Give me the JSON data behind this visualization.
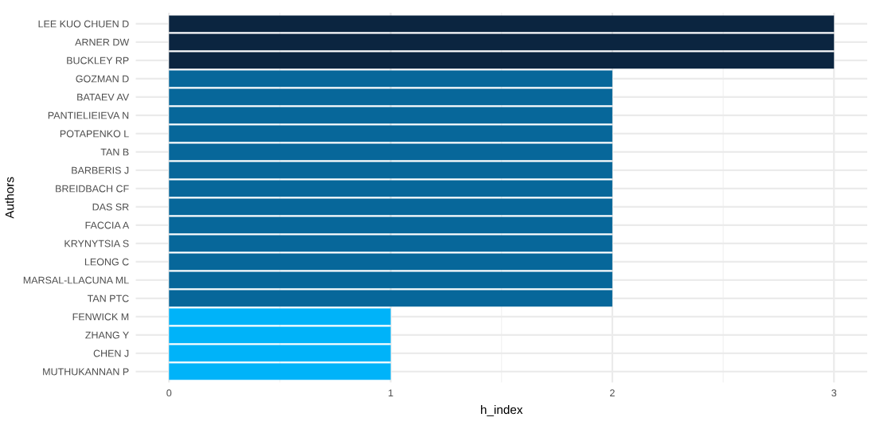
{
  "chart_data": {
    "type": "bar",
    "orientation": "horizontal",
    "xlabel": "h_index",
    "ylabel": "Authors",
    "categories": [
      "LEE KUO CHUEN D",
      "ARNER DW",
      "BUCKLEY RP",
      "GOZMAN D",
      "BATAEV AV",
      "PANTIELIEIEVA N",
      "POTAPENKO L",
      "TAN B",
      "BARBERIS J",
      "BREIDBACH CF",
      "DAS SR",
      "FACCIA A",
      "KRYNYTSIA S",
      "LEONG C",
      "MARSAL-LLACUNA ML",
      "TAN PTC",
      "FENWICK M",
      "ZHANG Y",
      "CHEN J",
      "MUTHUKANNAN P"
    ],
    "values": [
      3,
      3,
      3,
      2,
      2,
      2,
      2,
      2,
      2,
      2,
      2,
      2,
      2,
      2,
      2,
      2,
      1,
      1,
      1,
      1
    ],
    "colors": [
      "#0b2540",
      "#0b2540",
      "#0b2540",
      "#07679a",
      "#07679a",
      "#07679a",
      "#07679a",
      "#07679a",
      "#07679a",
      "#07679a",
      "#07679a",
      "#07679a",
      "#07679a",
      "#07679a",
      "#07679a",
      "#07679a",
      "#00b3f9",
      "#00b3f9",
      "#00b3f9",
      "#00b3f9"
    ],
    "xlim": [
      -0.15,
      3.15
    ],
    "xticks": [
      0,
      1,
      2,
      3
    ],
    "grid": true,
    "legend": false
  }
}
